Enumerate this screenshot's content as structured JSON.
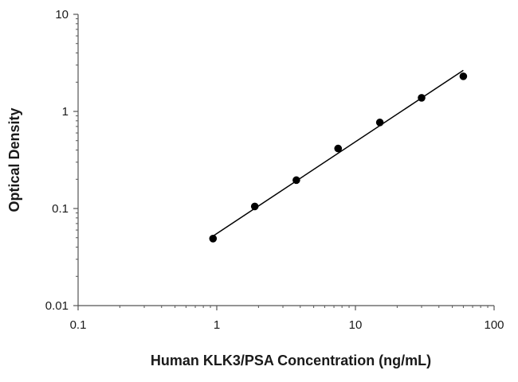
{
  "chart_data": {
    "type": "scatter",
    "title": "",
    "xlabel": "Human KLK3/PSA Concentration (ng/mL)",
    "ylabel": "Optical Density",
    "x_scale": "log",
    "y_scale": "log",
    "xlim": [
      0.1,
      100
    ],
    "ylim": [
      0.01,
      10
    ],
    "x_ticks": [
      0.1,
      1,
      10,
      100
    ],
    "x_tick_labels": [
      "0.1",
      "1",
      "10",
      "100"
    ],
    "y_ticks": [
      0.01,
      0.1,
      1,
      10
    ],
    "y_tick_labels": [
      "0.01",
      "0.1",
      "1",
      "10"
    ],
    "grid": false,
    "legend": false,
    "points": {
      "x": [
        0.94,
        1.88,
        3.75,
        7.5,
        15,
        30,
        60
      ],
      "y": [
        0.049,
        0.105,
        0.196,
        0.415,
        0.77,
        1.38,
        2.3
      ]
    },
    "fit_line": {
      "x": [
        0.94,
        60
      ],
      "y": [
        0.052,
        2.65
      ]
    },
    "colors": {
      "points": "#000000",
      "line": "#000000",
      "axis": "#555555"
    }
  }
}
